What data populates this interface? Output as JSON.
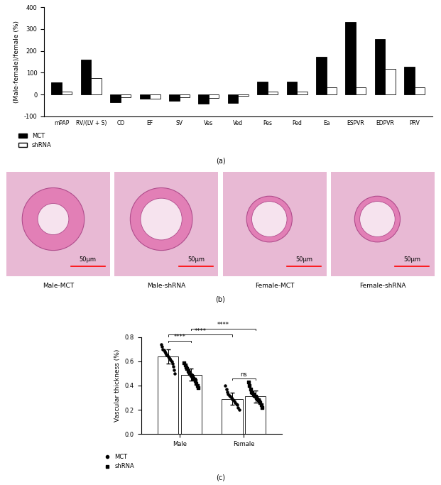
{
  "chart_data": [
    {
      "type": "bar",
      "title": "(a)",
      "y_label": "(Male-female)/female (%)",
      "categories": [
        "mPAP",
        "RV/(LV + S)",
        "CO",
        "EF",
        "SV",
        "Ves",
        "Ved",
        "Pes",
        "Ped",
        "Ea",
        "ESPVR",
        "EDPVR",
        "PRV"
      ],
      "series": [
        {
          "name": "MCT",
          "color": "#000000",
          "values": [
            55,
            160,
            -35,
            -20,
            -30,
            -42,
            -38,
            60,
            60,
            172,
            333,
            255,
            128
          ]
        },
        {
          "name": "shRNA",
          "color": "#ffffff",
          "values": [
            15,
            77,
            -12,
            -18,
            -12,
            -15,
            -5,
            12,
            12,
            32,
            32,
            118,
            32
          ]
        }
      ],
      "ylim": [
        -100,
        400
      ],
      "yticks": [
        -100,
        0,
        100,
        200,
        300,
        400
      ],
      "legend": "upper left",
      "grid": false
    },
    {
      "type": "bar",
      "title": "(c)",
      "y_label": "Vascular thickness (%)",
      "categories": [
        "Male",
        "Female"
      ],
      "series": [
        {
          "name": "MCT",
          "color": "#ffffff",
          "marker": "circle",
          "values": [
            0.64,
            0.29
          ],
          "errors": [
            0.06,
            0.05
          ],
          "points": [
            [
              0.74,
              0.72,
              0.7,
              0.69,
              0.68,
              0.67,
              0.66,
              0.65,
              0.64,
              0.63,
              0.62,
              0.61,
              0.6,
              0.58,
              0.56,
              0.53,
              0.5
            ],
            [
              0.4,
              0.37,
              0.35,
              0.33,
              0.32,
              0.31,
              0.3,
              0.29,
              0.28,
              0.27,
              0.26,
              0.25,
              0.24,
              0.22,
              0.2
            ]
          ]
        },
        {
          "name": "shRNA",
          "color": "#ffffff",
          "marker": "square",
          "values": [
            0.49,
            0.31
          ],
          "errors": [
            0.05,
            0.05
          ],
          "points": [
            [
              0.59,
              0.57,
              0.55,
              0.54,
              0.52,
              0.51,
              0.5,
              0.49,
              0.48,
              0.47,
              0.46,
              0.45,
              0.44,
              0.42,
              0.4,
              0.38
            ],
            [
              0.43,
              0.4,
              0.37,
              0.35,
              0.34,
              0.33,
              0.32,
              0.31,
              0.3,
              0.29,
              0.28,
              0.27,
              0.26,
              0.24,
              0.22
            ]
          ]
        }
      ],
      "comparisons": [
        {
          "label": "****",
          "a": [
            0,
            0
          ],
          "b": [
            0,
            1
          ]
        },
        {
          "label": "****",
          "a": [
            0,
            0
          ],
          "b": [
            1,
            0
          ]
        },
        {
          "label": "****",
          "a": [
            0,
            1
          ],
          "b": [
            1,
            1
          ]
        },
        {
          "label": "ns",
          "a": [
            1,
            0
          ],
          "b": [
            1,
            1
          ]
        }
      ],
      "ylim": [
        0.0,
        0.8
      ],
      "yticks": [
        0.0,
        0.2,
        0.4,
        0.6,
        0.8
      ],
      "legend": "upper left",
      "grid": false
    }
  ],
  "images": {
    "title": "(b)",
    "panels": [
      {
        "label": "Male-MCT",
        "scale_bar": "50μm"
      },
      {
        "label": "Male-shRNA",
        "scale_bar": "50μm"
      },
      {
        "label": "Female-MCT",
        "scale_bar": "50μm"
      },
      {
        "label": "Female-shRNA",
        "scale_bar": "50μm"
      }
    ]
  }
}
